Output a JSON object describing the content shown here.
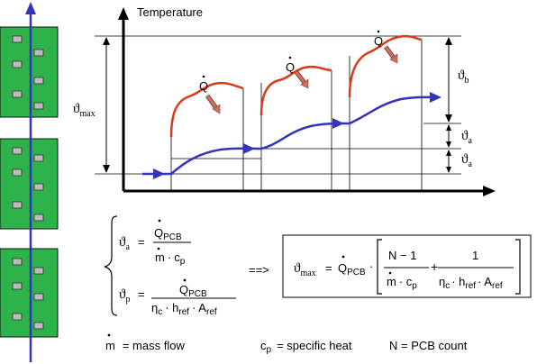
{
  "diagram": {
    "axis_y_label": "Temperature",
    "dims": {
      "theta_max": "ϑ",
      "theta_max_sub": "max",
      "theta_b": "ϑ",
      "theta_b_sub": "b",
      "theta_a": "ϑ",
      "theta_a_sub": "a"
    },
    "heat_label": "Q",
    "colors": {
      "board": "#2db34a",
      "flow_arrow": "#3333bb",
      "pcb_curve": "#d93a1a",
      "air_curve": "#3333bb",
      "heat_arrow": "#e06a55"
    }
  },
  "equations": {
    "theta_a_lhs": "ϑ",
    "theta_a_sub": "a",
    "eq_sign": "=",
    "theta_a_num": "Q",
    "theta_a_num_sub": "PCB",
    "theta_a_den_m": "m",
    "theta_a_den_dot": "·",
    "theta_a_den_c": "c",
    "theta_a_den_c_sub": "p",
    "theta_p_lhs": "ϑ",
    "theta_p_sub": "p",
    "theta_p_num": "Q",
    "theta_p_num_sub": "PCB",
    "theta_p_den_eta": "η",
    "theta_p_den_eta_sub": "c",
    "theta_p_den_h": "· h",
    "theta_p_den_h_sub": "ref",
    "theta_p_den_A": "· A",
    "theta_p_den_A_sub": "ref",
    "implies": "==>",
    "box_lhs": "ϑ",
    "box_lhs_sub": "max",
    "box_q": "Q",
    "box_q_sub": "PCB",
    "box_dot": "·",
    "frac1_num": "N − 1",
    "frac1_den_m": "m",
    "frac1_den_c": "· c",
    "frac1_den_c_sub": "p",
    "plus": "+",
    "frac2_num": "1",
    "frac2_den_eta": "η",
    "frac2_den_eta_sub": "c",
    "frac2_den_h": "· h",
    "frac2_den_h_sub": "ref",
    "frac2_den_A": "· A",
    "frac2_den_A_sub": "ref"
  },
  "legend": {
    "m": "m",
    "mass_flow": "= mass   flow",
    "c": "c",
    "c_sub": "p",
    "specific_heat": "= specific   heat",
    "pcb_count": "N = PCB  count"
  }
}
